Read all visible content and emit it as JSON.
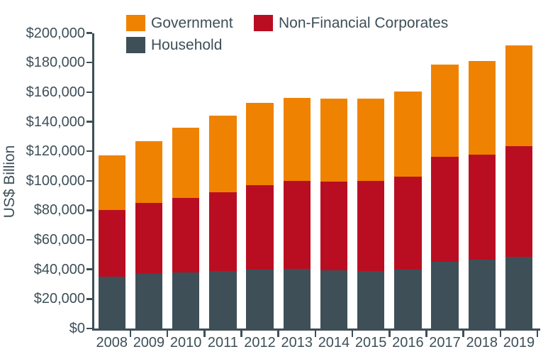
{
  "colors": {
    "background": "#FFFFFF",
    "axis": "#3E4F58",
    "text": "#3E4F58",
    "government": "#EF8200",
    "non_financial_corporates": "#B90E22",
    "household": "#3E4F58"
  },
  "legend": {
    "rows": [
      [
        {
          "label": "Government",
          "color": "#EF8200"
        },
        {
          "label": "Non-Financial Corporates",
          "color": "#B90E22"
        }
      ],
      [
        {
          "label": "Household",
          "color": "#3E4F58"
        }
      ]
    ]
  },
  "y_axis": {
    "title": "US$ Billion",
    "tick_labels": [
      "$0",
      "$20,000",
      "$40,000",
      "$60,000",
      "$80,000",
      "$100,000",
      "$120,000",
      "$140,000",
      "$160,000",
      "$180,000",
      "$200,000"
    ]
  },
  "x_axis": {
    "tick_labels": [
      "2008",
      "2009",
      "2010",
      "2011",
      "2012",
      "2013",
      "2014",
      "2015",
      "2016",
      "2017",
      "2018",
      "2019"
    ]
  },
  "chart_data": {
    "type": "bar",
    "stacked": true,
    "title": "",
    "xlabel": "",
    "ylabel": "US$ Billion",
    "ylim": [
      0,
      200000
    ],
    "ytick_step": 20000,
    "grid": false,
    "legend_position": "top-left, two rows",
    "categories": [
      "2008",
      "2009",
      "2010",
      "2011",
      "2012",
      "2013",
      "2014",
      "2015",
      "2016",
      "2017",
      "2018",
      "2019"
    ],
    "series": [
      {
        "name": "Household",
        "color": "#3E4F58",
        "values": [
          35000,
          37000,
          38000,
          39000,
          40000,
          40500,
          39500,
          39000,
          40000,
          45000,
          46500,
          48500
        ]
      },
      {
        "name": "Non-Financial Corporates",
        "color": "#B90E22",
        "values": [
          45000,
          48000,
          50500,
          53000,
          57000,
          59500,
          60000,
          61000,
          63000,
          71000,
          71000,
          75000
        ]
      },
      {
        "name": "Government",
        "color": "#EF8200",
        "values": [
          37000,
          42000,
          47500,
          52000,
          55500,
          56000,
          56000,
          55500,
          57500,
          62500,
          63500,
          68000
        ]
      }
    ],
    "totals": [
      117000,
      127000,
      136000,
      144000,
      152500,
      156000,
      155500,
      155500,
      160500,
      178500,
      181000,
      191500
    ]
  }
}
